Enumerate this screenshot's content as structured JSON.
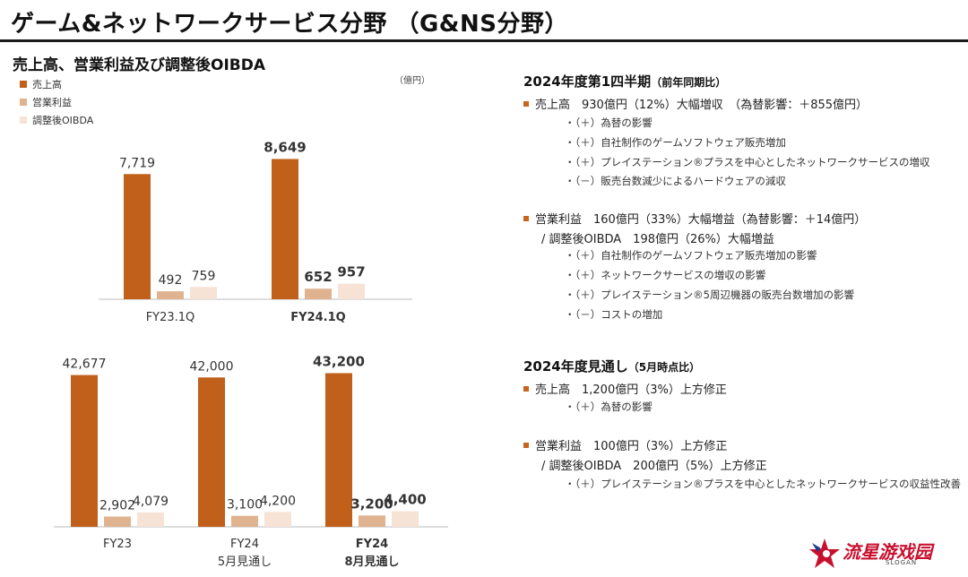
{
  "page": {
    "title": "ゲーム&ネットワークサービス分野 （G&NS分野）"
  },
  "left": {
    "heading": "売上高、営業利益及び調整後OIBDA",
    "unit": "（億円）",
    "legend": [
      {
        "label": "売上高",
        "color": "#c0601a"
      },
      {
        "label": "営業利益",
        "color": "#e0b390"
      },
      {
        "label": "調整後OIBDA",
        "color": "#f6e3d6"
      }
    ]
  },
  "chart_data": [
    {
      "type": "bar",
      "series": [
        {
          "name": "売上高",
          "values": [
            7719,
            8649
          ]
        },
        {
          "name": "営業利益",
          "values": [
            492,
            652
          ]
        },
        {
          "name": "調整後OIBDA",
          "values": [
            759,
            957
          ]
        }
      ],
      "categories": [
        "FY23.1Q",
        "FY24.1Q"
      ],
      "category_sublabels": [
        "",
        ""
      ],
      "value_labels": [
        [
          "7,719",
          "492",
          "759"
        ],
        [
          "8,649",
          "652",
          "957"
        ]
      ],
      "bold_categories": [
        false,
        true
      ]
    },
    {
      "type": "bar",
      "series": [
        {
          "name": "売上高",
          "values": [
            42677,
            42000,
            43200
          ]
        },
        {
          "name": "営業利益",
          "values": [
            2902,
            3100,
            3200
          ]
        },
        {
          "name": "調整後OIBDA",
          "values": [
            4079,
            4200,
            4400
          ]
        }
      ],
      "categories": [
        "FY23",
        "FY24",
        "FY24"
      ],
      "category_sublabels": [
        "",
        "5月見通し",
        "8月見通し"
      ],
      "value_labels": [
        [
          "42,677",
          "2,902",
          "4,079"
        ],
        [
          "42,000",
          "3,100",
          "4,200"
        ],
        [
          "43,200",
          "3,200",
          "4,400"
        ]
      ],
      "bold_categories": [
        false,
        false,
        true
      ]
    }
  ],
  "right": {
    "q1": {
      "heading": "2024年度第1四半期",
      "heading_paren": "（前年同期比）",
      "sales": "売上高　930億円（12%）大幅増収　（為替影響：＋855億円）",
      "sales_items": [
        "・（＋）為替の影響",
        "・（＋）自社制作のゲームソフトウェア販売増加",
        "・（＋）プレイステーション®プラスを中心としたネットワークサービスの増収",
        "・（－）販売台数減少によるハードウェアの減収"
      ],
      "op": "営業利益　160億円（33%）大幅増益（為替影響：＋14億円）",
      "oibda": "/ 調整後OIBDA　198億円（26%）大幅増益",
      "op_items": [
        "・（＋）自社制作のゲームソフトウェア販売増加の影響",
        "・（＋）ネットワークサービスの増収の影響",
        "・（＋）プレイステーション®5周辺機器の販売台数増加の影響",
        "・（－）コストの増加"
      ]
    },
    "fy": {
      "heading": "2024年度見通し",
      "heading_paren": "（5月時点比）",
      "sales": "売上高　1,200億円（3%）上方修正",
      "sales_items": [
        "・（＋）為替の影響"
      ],
      "op": "営業利益　100億円（3%）上方修正",
      "oibda": "/ 調整後OIBDA　200億円（5%）上方修正",
      "op_items": [
        "・（＋）プレイステーション®プラスを中心としたネットワークサービスの収益性改善"
      ]
    }
  },
  "logo": {
    "text": "流星游戏园",
    "slogan": "SLOGAN",
    "colors": {
      "red": "#c8102e",
      "blue": "#1f3a93"
    }
  }
}
